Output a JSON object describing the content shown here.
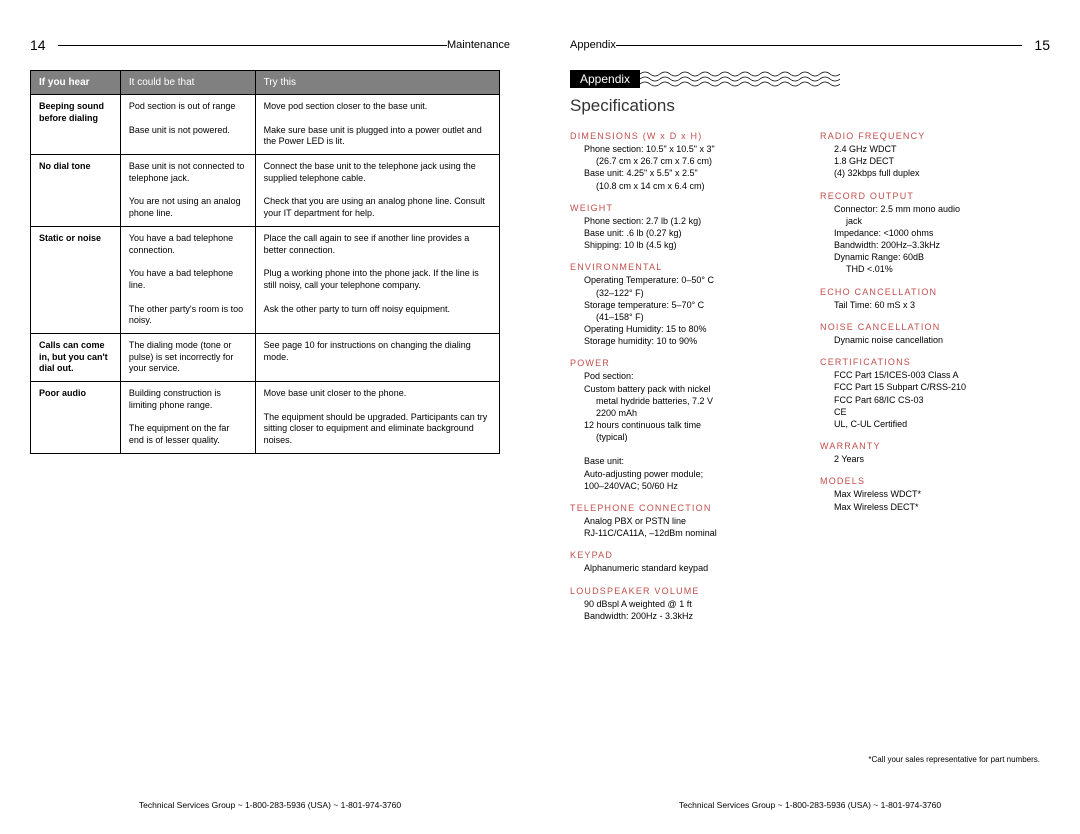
{
  "left_page": {
    "page_num": "14",
    "section": "Maintenance",
    "table": {
      "headers": [
        "If you hear",
        "It could be that",
        "Try this"
      ],
      "rows": [
        {
          "symptom": "Beeping sound before dialing",
          "causes": [
            "Pod section is out of range",
            "Base unit is not powered."
          ],
          "fixes": [
            "Move pod section closer to the base unit.",
            "Make sure base unit is plugged into a power outlet and the Power LED is lit."
          ]
        },
        {
          "symptom": "No dial tone",
          "causes": [
            "Base unit is not connected to telephone jack.",
            "You are not using an analog phone line."
          ],
          "fixes": [
            "Connect the base unit to the telephone jack using the supplied telephone cable.",
            "Check that you are using an analog phone line. Consult your IT department for help."
          ]
        },
        {
          "symptom": "Static or noise",
          "causes": [
            "You have a bad telephone connection.",
            "You have a bad telephone line.",
            "The other party's room is too noisy."
          ],
          "fixes": [
            "Place the call again to see if another line provides a better connection.",
            "Plug a working phone into the phone jack. If the line is still noisy, call your telephone company.",
            "Ask the other party to turn off noisy equipment."
          ]
        },
        {
          "symptom": "Calls can come in, but you can't dial out.",
          "causes": [
            "The dialing mode (tone or pulse) is set incorrectly for your service."
          ],
          "fixes": [
            "See page 10 for instructions on changing the dialing mode."
          ]
        },
        {
          "symptom": "Poor audio",
          "causes": [
            "Building construction is limiting phone range.",
            "The equipment on the far end is of lesser quality."
          ],
          "fixes": [
            "Move base unit closer to the phone.",
            "The equipment should be upgraded. Participants can try sitting closer to equipment and eliminate background noises."
          ]
        }
      ]
    }
  },
  "right_page": {
    "page_num": "15",
    "section": "Appendix",
    "banner": "Appendix",
    "title": "Specifications",
    "specs_left": [
      {
        "head": "DIMENSIONS (W x D x H)",
        "body": [
          "Phone section: 10.5\" x 10.5\" x 3\"",
          "   (26.7 cm x 26.7 cm x 7.6 cm)",
          "Base unit: 4.25\" x 5.5\" x 2.5\"",
          "   (10.8 cm x 14 cm x 6.4 cm)"
        ]
      },
      {
        "head": "WEIGHT",
        "body": [
          "Phone section: 2.7 lb (1.2 kg)",
          "Base unit: .6 lb (0.27 kg)",
          "Shipping: 10 lb (4.5 kg)"
        ]
      },
      {
        "head": "ENVIRONMENTAL",
        "body": [
          "Operating Temperature: 0–50° C",
          "   (32–122° F)",
          "Storage temperature: 5–70° C",
          "   (41–158° F)",
          "Operating Humidity: 15 to 80%",
          "Storage humidity: 10 to 90%"
        ]
      },
      {
        "head": "POWER",
        "body": [
          "Pod section:",
          "Custom battery pack with nickel",
          "   metal hydride batteries, 7.2 V",
          "   2200 mAh",
          "12 hours continuous talk time",
          "   (typical)",
          "",
          "Base unit:",
          "Auto-adjusting power module;",
          "100–240VAC; 50/60 Hz"
        ]
      },
      {
        "head": "TELEPHONE CONNECTION",
        "body": [
          "Analog PBX or PSTN line",
          "RJ-11C/CA11A, –12dBm nominal"
        ]
      },
      {
        "head": "KEYPAD",
        "body": [
          "Alphanumeric standard keypad"
        ]
      },
      {
        "head": "LOUDSPEAKER VOLUME",
        "body": [
          "90 dBspl A weighted @ 1 ft",
          "Bandwidth: 200Hz - 3.3kHz"
        ]
      }
    ],
    "specs_right": [
      {
        "head": "RADIO FREQUENCY",
        "body": [
          "2.4 GHz WDCT",
          "1.8 GHz DECT",
          "(4) 32kbps full duplex"
        ]
      },
      {
        "head": "RECORD OUTPUT",
        "body": [
          "Connector: 2.5 mm mono audio",
          "   jack",
          "Impedance: <1000 ohms",
          "Bandwidth: 200Hz–3.3kHz",
          "Dynamic Range: 60dB",
          "   THD <.01%"
        ]
      },
      {
        "head": "ECHO CANCELLATION",
        "body": [
          "Tail Time: 60 mS x 3"
        ]
      },
      {
        "head": "NOISE CANCELLATION",
        "body": [
          "Dynamic noise cancellation"
        ]
      },
      {
        "head": "CERTIFICATIONS",
        "body": [
          "FCC Part 15/ICES-003 Class A",
          "FCC Part 15 Subpart C/RSS-210",
          "FCC Part 68/IC CS-03",
          "CE",
          "UL, C-UL Certified"
        ]
      },
      {
        "head": "WARRANTY",
        "body": [
          "2 Years"
        ]
      },
      {
        "head": "MODELS",
        "body": [
          "Max Wireless WDCT*",
          "Max Wireless DECT*"
        ]
      }
    ],
    "footnote": "*Call your sales representative for part numbers."
  },
  "footer": "Technical Services Group ~ 1-800-283-5936 (USA) ~ 1-801-974-3760",
  "colors": {
    "header_bg": "#808080",
    "header_fg": "#ffffff",
    "spec_head": "#c0504d",
    "border": "#000000"
  }
}
